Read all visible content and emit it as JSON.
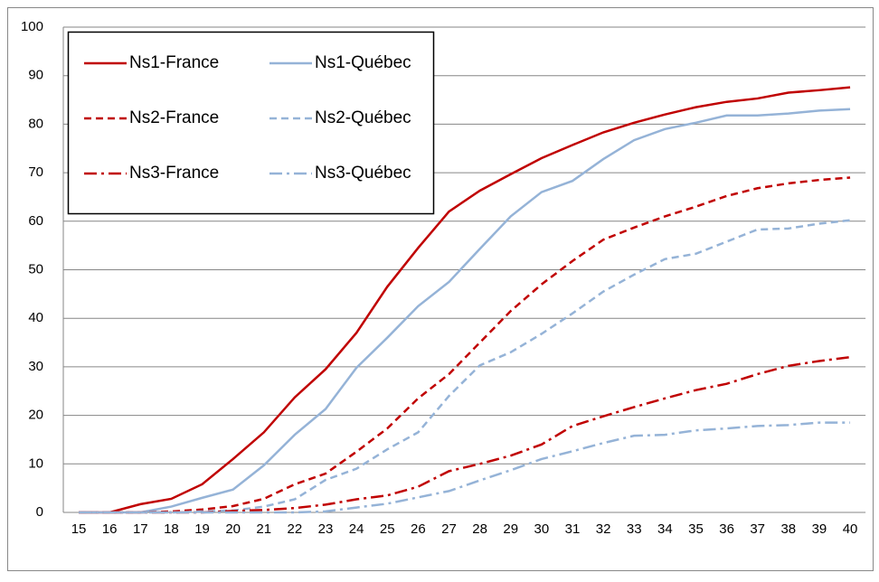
{
  "chart_data": {
    "type": "line",
    "categories": [
      "15",
      "16",
      "17",
      "18",
      "19",
      "20",
      "21",
      "22",
      "23",
      "24",
      "25",
      "26",
      "27",
      "28",
      "29",
      "30",
      "31",
      "32",
      "33",
      "34",
      "35",
      "36",
      "37",
      "38",
      "39",
      "40"
    ],
    "ylim": [
      0,
      100
    ],
    "yticks": [
      0,
      10,
      20,
      30,
      40,
      50,
      60,
      70,
      80,
      90,
      100
    ],
    "grid": true,
    "legend": "upper left",
    "series": [
      {
        "name": "Ns1-France",
        "color": "#c00000",
        "dash": "solid",
        "values": [
          0,
          0,
          1.7,
          2.8,
          5.8,
          11,
          16.5,
          23.7,
          29.5,
          37,
          46.5,
          54.5,
          62,
          66.3,
          69.7,
          73,
          75.7,
          78.3,
          80.3,
          82,
          83.5,
          84.6,
          85.3,
          86.5,
          87,
          87.6
        ]
      },
      {
        "name": "Ns1-Québec",
        "color": "#95b3d7",
        "dash": "solid",
        "values": [
          0,
          0,
          0,
          1.2,
          3,
          4.7,
          9.7,
          16,
          21.3,
          29.8,
          36,
          42.5,
          47.5,
          54.3,
          61,
          66,
          68.3,
          72.8,
          76.7,
          79,
          80.3,
          81.8,
          81.8,
          82.2,
          82.8,
          83.1
        ]
      },
      {
        "name": "Ns2-France",
        "color": "#c00000",
        "dash": "dash",
        "values": [
          0,
          0,
          0,
          0.2,
          0.6,
          1.3,
          2.8,
          5.8,
          8,
          12.5,
          17.3,
          23.5,
          28.5,
          35,
          41.5,
          47,
          51.8,
          56.2,
          58.7,
          61,
          63,
          65.2,
          66.8,
          67.8,
          68.5,
          69
        ]
      },
      {
        "name": "Ns2-Québec",
        "color": "#95b3d7",
        "dash": "dash",
        "values": [
          0,
          0,
          0,
          0,
          0.2,
          0.4,
          1.2,
          2.7,
          6.7,
          9,
          13,
          16.5,
          24,
          30.3,
          33,
          36.8,
          41,
          45.5,
          49,
          52.2,
          53.3,
          55.8,
          58.3,
          58.5,
          59.5,
          60.2
        ]
      },
      {
        "name": "Ns3-France",
        "color": "#c00000",
        "dash": "dashdot",
        "values": [
          0,
          0,
          0,
          0,
          0,
          0.3,
          0.5,
          0.9,
          1.6,
          2.7,
          3.5,
          5.3,
          8.5,
          10,
          11.7,
          14,
          17.8,
          19.8,
          21.7,
          23.5,
          25.2,
          26.5,
          28.5,
          30.2,
          31.2,
          32
        ]
      },
      {
        "name": "Ns3-Québec",
        "color": "#95b3d7",
        "dash": "dashdot",
        "values": [
          0,
          0,
          0,
          0,
          0,
          0,
          0,
          0,
          0.2,
          1,
          1.8,
          3.1,
          4.4,
          6.6,
          8.7,
          11,
          12.6,
          14.3,
          15.8,
          16,
          16.9,
          17.3,
          17.8,
          18,
          18.5,
          18.5
        ]
      }
    ]
  }
}
